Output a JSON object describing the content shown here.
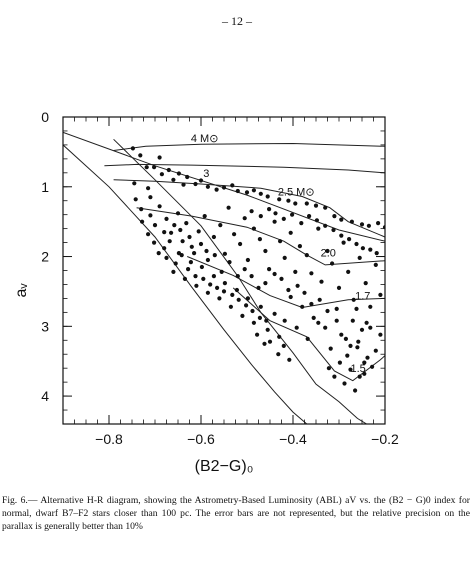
{
  "page_number": "– 12 –",
  "caption": {
    "text": "Fig. 6.— Alternative H-R diagram, showing the Astrometry-Based Luminosity (ABL) aV vs. the (B2 − G)0 index for normal, dwarf B7–F2 stars closer than 100 pc. The error bars are not represented, but the relative precision on the parallax is generally better than 10%"
  },
  "chart_data": {
    "type": "scatter",
    "title": "",
    "xlabel": "(B2−G)₀",
    "ylabel": "aᵥ",
    "xlim": [
      -0.9,
      -0.2
    ],
    "ylim": [
      0,
      4.4
    ],
    "y_inverted": true,
    "grid": false,
    "x_ticks": [
      -0.8,
      -0.6,
      -0.4,
      -0.2
    ],
    "x_tick_labels": [
      "−0.8",
      "−0.6",
      "−0.4",
      "−0.2"
    ],
    "y_ticks": [
      0,
      1,
      2,
      3,
      4
    ],
    "y_tick_labels": [
      "0",
      "1",
      "2",
      "3",
      "4"
    ],
    "curve_labels": [
      "4 M⊙",
      "3",
      "2.5 M⊙",
      "2.0",
      "1.7",
      "1.5"
    ],
    "tracks": [
      {
        "label": "4 M⊙",
        "points": [
          [
            -0.79,
            0.48
          ],
          [
            -0.72,
            0.42
          ],
          [
            -0.6,
            0.39
          ],
          [
            -0.4,
            0.38
          ],
          [
            -0.2,
            0.42
          ]
        ]
      },
      {
        "label": "3",
        "points": [
          [
            -0.81,
            0.7
          ],
          [
            -0.74,
            0.68
          ],
          [
            -0.62,
            0.69
          ],
          [
            -0.42,
            0.72
          ],
          [
            -0.28,
            0.76
          ],
          [
            -0.2,
            0.8
          ]
        ]
      },
      {
        "label": "2.5 M⊙",
        "points": [
          [
            -0.79,
            0.9
          ],
          [
            -0.7,
            0.92
          ],
          [
            -0.6,
            0.96
          ],
          [
            -0.47,
            1.02
          ],
          [
            -0.38,
            1.14
          ],
          [
            -0.32,
            1.3
          ],
          [
            -0.28,
            1.5
          ],
          [
            -0.2,
            1.72
          ]
        ]
      },
      {
        "label": "2.0",
        "points": [
          [
            -0.74,
            1.3
          ],
          [
            -0.62,
            1.42
          ],
          [
            -0.5,
            1.58
          ],
          [
            -0.42,
            1.78
          ],
          [
            -0.37,
            1.98
          ],
          [
            -0.33,
            2.12
          ],
          [
            -0.2,
            2.06
          ]
        ]
      },
      {
        "label": "1.7",
        "points": [
          [
            -0.63,
            2.0
          ],
          [
            -0.53,
            2.27
          ],
          [
            -0.45,
            2.56
          ],
          [
            -0.38,
            2.73
          ],
          [
            -0.28,
            2.62
          ],
          [
            -0.2,
            2.6
          ]
        ]
      },
      {
        "label": "1.5",
        "points": [
          [
            -0.53,
            2.45
          ],
          [
            -0.45,
            2.92
          ],
          [
            -0.37,
            3.15
          ],
          [
            -0.31,
            3.64
          ],
          [
            -0.27,
            3.78
          ],
          [
            -0.21,
            3.48
          ],
          [
            -0.2,
            3.42
          ]
        ]
      },
      {
        "label": "",
        "points": [
          [
            -0.79,
            0.32
          ],
          [
            -0.7,
            0.9
          ],
          [
            -0.6,
            1.56
          ],
          [
            -0.52,
            2.28
          ],
          [
            -0.47,
            2.8
          ],
          [
            -0.4,
            3.38
          ],
          [
            -0.35,
            3.83
          ],
          [
            -0.3,
            4.08
          ],
          [
            -0.26,
            4.32
          ],
          [
            -0.24,
            4.4
          ]
        ]
      },
      {
        "label": "",
        "points": [
          [
            -0.9,
            0.4
          ],
          [
            -0.8,
            1.0
          ],
          [
            -0.7,
            1.72
          ],
          [
            -0.62,
            2.44
          ],
          [
            -0.55,
            3.05
          ],
          [
            -0.49,
            3.55
          ],
          [
            -0.44,
            3.94
          ],
          [
            -0.4,
            4.23
          ],
          [
            -0.37,
            4.4
          ]
        ]
      },
      {
        "label": "",
        "points": [
          [
            -0.9,
            0.22
          ],
          [
            -0.7,
            0.7
          ],
          [
            -0.5,
            1.12
          ],
          [
            -0.3,
            1.62
          ],
          [
            -0.2,
            1.78
          ]
        ]
      }
    ],
    "series": [
      {
        "points": [
          [
            -0.748,
            0.45
          ],
          [
            -0.732,
            0.55
          ],
          [
            -0.718,
            0.72
          ],
          [
            -0.745,
            0.95
          ],
          [
            -0.715,
            1.02
          ],
          [
            -0.742,
            1.18
          ],
          [
            -0.71,
            1.15
          ],
          [
            -0.702,
            0.72
          ],
          [
            -0.69,
            0.58
          ],
          [
            -0.685,
            0.82
          ],
          [
            -0.67,
            0.76
          ],
          [
            -0.66,
            0.9
          ],
          [
            -0.648,
            0.81
          ],
          [
            -0.638,
            0.97
          ],
          [
            -0.63,
            0.86
          ],
          [
            -0.612,
            0.96
          ],
          [
            -0.6,
            0.91
          ],
          [
            -0.585,
            1.0
          ],
          [
            -0.566,
            1.04
          ],
          [
            -0.55,
            1.01
          ],
          [
            -0.532,
            0.98
          ],
          [
            -0.52,
            1.06
          ],
          [
            -0.5,
            1.08
          ],
          [
            -0.485,
            1.05
          ],
          [
            -0.47,
            1.1
          ],
          [
            -0.455,
            1.14
          ],
          [
            -0.43,
            1.18
          ],
          [
            -0.41,
            1.2
          ],
          [
            -0.395,
            1.24
          ],
          [
            -0.37,
            1.24
          ],
          [
            -0.35,
            1.27
          ],
          [
            -0.33,
            1.3
          ],
          [
            -0.31,
            1.42
          ],
          [
            -0.295,
            1.47
          ],
          [
            -0.272,
            1.5
          ],
          [
            -0.25,
            1.54
          ],
          [
            -0.235,
            1.56
          ],
          [
            -0.215,
            1.52
          ],
          [
            -0.2,
            1.58
          ],
          [
            -0.73,
            1.32
          ],
          [
            -0.71,
            1.41
          ],
          [
            -0.7,
            1.55
          ],
          [
            -0.69,
            1.28
          ],
          [
            -0.675,
            1.46
          ],
          [
            -0.665,
            1.66
          ],
          [
            -0.65,
            1.38
          ],
          [
            -0.64,
            1.78
          ],
          [
            -0.632,
            1.52
          ],
          [
            -0.62,
            1.86
          ],
          [
            -0.605,
            1.64
          ],
          [
            -0.592,
            1.42
          ],
          [
            -0.588,
            1.92
          ],
          [
            -0.572,
            1.72
          ],
          [
            -0.558,
            1.55
          ],
          [
            -0.548,
            1.96
          ],
          [
            -0.54,
            1.3
          ],
          [
            -0.528,
            1.68
          ],
          [
            -0.515,
            1.82
          ],
          [
            -0.505,
            1.45
          ],
          [
            -0.498,
            2.05
          ],
          [
            -0.485,
            1.6
          ],
          [
            -0.472,
            1.75
          ],
          [
            -0.46,
            1.92
          ],
          [
            -0.452,
            2.18
          ],
          [
            -0.44,
            1.5
          ],
          [
            -0.428,
            1.78
          ],
          [
            -0.418,
            2.02
          ],
          [
            -0.405,
            1.66
          ],
          [
            -0.395,
            2.22
          ],
          [
            -0.385,
            1.85
          ],
          [
            -0.37,
            1.98
          ],
          [
            -0.36,
            2.24
          ],
          [
            -0.345,
            1.6
          ],
          [
            -0.338,
            2.36
          ],
          [
            -0.325,
            1.92
          ],
          [
            -0.315,
            2.1
          ],
          [
            -0.3,
            2.45
          ],
          [
            -0.29,
            1.8
          ],
          [
            -0.28,
            2.22
          ],
          [
            -0.268,
            2.62
          ],
          [
            -0.255,
            2.02
          ],
          [
            -0.242,
            2.38
          ],
          [
            -0.232,
            2.72
          ],
          [
            -0.22,
            2.12
          ],
          [
            -0.21,
            2.55
          ],
          [
            -0.675,
            2.02
          ],
          [
            -0.66,
            2.22
          ],
          [
            -0.648,
            1.95
          ],
          [
            -0.635,
            2.32
          ],
          [
            -0.622,
            2.08
          ],
          [
            -0.61,
            2.42
          ],
          [
            -0.598,
            2.15
          ],
          [
            -0.585,
            2.52
          ],
          [
            -0.572,
            2.28
          ],
          [
            -0.56,
            2.6
          ],
          [
            -0.548,
            2.38
          ],
          [
            -0.535,
            2.72
          ],
          [
            -0.522,
            2.48
          ],
          [
            -0.51,
            2.85
          ],
          [
            -0.498,
            2.6
          ],
          [
            -0.485,
            2.95
          ],
          [
            -0.47,
            2.72
          ],
          [
            -0.455,
            3.05
          ],
          [
            -0.44,
            2.82
          ],
          [
            -0.43,
            3.15
          ],
          [
            -0.418,
            2.92
          ],
          [
            -0.405,
            2.58
          ],
          [
            -0.392,
            3.02
          ],
          [
            -0.38,
            2.72
          ],
          [
            -0.368,
            3.18
          ],
          [
            -0.355,
            2.88
          ],
          [
            -0.342,
            2.62
          ],
          [
            -0.33,
            3.02
          ],
          [
            -0.318,
            3.32
          ],
          [
            -0.305,
            2.75
          ],
          [
            -0.295,
            3.12
          ],
          [
            -0.282,
            3.42
          ],
          [
            -0.27,
            2.92
          ],
          [
            -0.258,
            3.22
          ],
          [
            -0.245,
            3.52
          ],
          [
            -0.232,
            3.02
          ],
          [
            -0.22,
            3.35
          ],
          [
            -0.21,
            3.12
          ],
          [
            -0.322,
            3.6
          ],
          [
            -0.31,
            3.72
          ],
          [
            -0.298,
            3.52
          ],
          [
            -0.288,
            3.82
          ],
          [
            -0.275,
            3.62
          ],
          [
            -0.265,
            3.92
          ],
          [
            -0.255,
            3.72
          ],
          [
            -0.245,
            3.68
          ],
          [
            -0.238,
            3.45
          ],
          [
            -0.228,
            3.58
          ],
          [
            -0.275,
            3.28
          ],
          [
            -0.26,
            3.3
          ],
          [
            -0.285,
            3.18
          ],
          [
            -0.25,
            3.05
          ],
          [
            -0.24,
            2.95
          ],
          [
            -0.262,
            2.75
          ],
          [
            -0.305,
            2.92
          ],
          [
            -0.325,
            2.78
          ],
          [
            -0.345,
            2.95
          ],
          [
            -0.36,
            2.68
          ],
          [
            -0.375,
            2.52
          ],
          [
            -0.39,
            2.42
          ],
          [
            -0.41,
            2.48
          ],
          [
            -0.425,
            2.32
          ],
          [
            -0.44,
            2.25
          ],
          [
            -0.46,
            2.38
          ],
          [
            -0.475,
            2.45
          ],
          [
            -0.49,
            2.28
          ],
          [
            -0.505,
            2.18
          ],
          [
            -0.52,
            2.28
          ],
          [
            -0.538,
            2.08
          ],
          [
            -0.555,
            2.22
          ],
          [
            -0.57,
            1.98
          ],
          [
            -0.585,
            2.05
          ],
          [
            -0.6,
            1.82
          ],
          [
            -0.615,
            1.95
          ],
          [
            -0.625,
            1.72
          ],
          [
            -0.645,
            1.62
          ],
          [
            -0.658,
            1.55
          ],
          [
            -0.68,
            1.65
          ],
          [
            -0.728,
            1.5
          ],
          [
            -0.715,
            1.68
          ],
          [
            -0.702,
            1.8
          ],
          [
            -0.692,
            1.95
          ],
          [
            -0.68,
            1.88
          ],
          [
            -0.668,
            1.78
          ],
          [
            -0.655,
            2.1
          ],
          [
            -0.642,
            1.98
          ],
          [
            -0.628,
            2.18
          ],
          [
            -0.612,
            2.28
          ],
          [
            -0.595,
            2.32
          ],
          [
            -0.58,
            2.4
          ],
          [
            -0.565,
            2.45
          ],
          [
            -0.55,
            2.5
          ],
          [
            -0.532,
            2.55
          ],
          [
            -0.518,
            2.62
          ],
          [
            -0.502,
            2.7
          ],
          [
            -0.488,
            2.78
          ],
          [
            -0.472,
            2.88
          ],
          [
            -0.458,
            2.92
          ],
          [
            -0.478,
            3.12
          ],
          [
            -0.462,
            3.25
          ],
          [
            -0.45,
            3.22
          ],
          [
            -0.432,
            3.4
          ],
          [
            -0.42,
            3.28
          ],
          [
            -0.408,
            3.48
          ],
          [
            -0.49,
            1.35
          ],
          [
            -0.47,
            1.42
          ],
          [
            -0.452,
            1.32
          ],
          [
            -0.438,
            1.38
          ],
          [
            -0.42,
            1.46
          ],
          [
            -0.402,
            1.4
          ],
          [
            -0.382,
            1.52
          ],
          [
            -0.365,
            1.42
          ],
          [
            -0.348,
            1.48
          ],
          [
            -0.33,
            1.56
          ],
          [
            -0.312,
            1.62
          ],
          [
            -0.295,
            1.7
          ],
          [
            -0.278,
            1.75
          ],
          [
            -0.262,
            1.82
          ],
          [
            -0.248,
            1.88
          ],
          [
            -0.232,
            1.9
          ],
          [
            -0.218,
            1.95
          ]
        ]
      }
    ]
  }
}
